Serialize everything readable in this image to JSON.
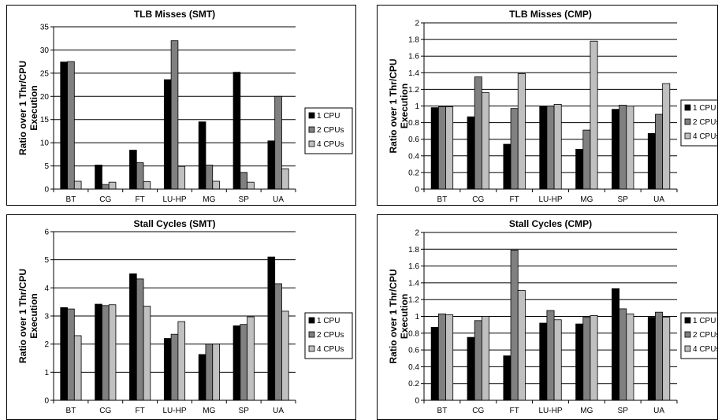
{
  "colors": {
    "series": [
      "#000000",
      "#808080",
      "#c0c0c0"
    ],
    "grid": "#000000"
  },
  "chart_data": [
    {
      "type": "bar",
      "title": "TLB Misses (SMT)",
      "ylabel": [
        "Ratio over 1 Thr/CPU",
        "Execution"
      ],
      "categories": [
        "BT",
        "CG",
        "FT",
        "LU-HP",
        "MG",
        "SP",
        "UA"
      ],
      "ylim": [
        0,
        35
      ],
      "yticks": [
        "0",
        "5",
        "10",
        "15",
        "20",
        "25",
        "30",
        "35"
      ],
      "grid": true,
      "legend": "right",
      "series": [
        {
          "name": "1 CPU",
          "values": [
            27.4,
            5.2,
            8.4,
            23.6,
            14.5,
            25.2,
            10.4
          ]
        },
        {
          "name": "2 CPUs",
          "values": [
            27.5,
            1.0,
            5.7,
            32.0,
            5.2,
            3.6,
            20.0
          ]
        },
        {
          "name": "4 CPUs",
          "values": [
            1.7,
            1.5,
            1.6,
            4.9,
            1.7,
            1.5,
            4.4
          ]
        }
      ]
    },
    {
      "type": "bar",
      "title": "TLB Misses (CMP)",
      "ylabel": [
        "Ratio over 1 Thr/CPU",
        "Execution"
      ],
      "categories": [
        "BT",
        "CG",
        "FT",
        "LU-HP",
        "MG",
        "SP",
        "UA"
      ],
      "ylim": [
        0,
        2
      ],
      "yticks": [
        "0",
        "0.2",
        "0.4",
        "0.6",
        "0.8",
        "1",
        "1.2",
        "1.4",
        "1.6",
        "1.8",
        "2"
      ],
      "grid": true,
      "legend": "right",
      "series": [
        {
          "name": "1 CPU",
          "values": [
            0.98,
            0.87,
            0.54,
            1.0,
            0.48,
            0.96,
            0.67
          ]
        },
        {
          "name": "2 CPUs",
          "values": [
            0.99,
            1.35,
            0.97,
            1.0,
            0.71,
            1.01,
            0.9
          ]
        },
        {
          "name": "4 CPUs",
          "values": [
            0.99,
            1.16,
            1.39,
            1.02,
            1.78,
            1.0,
            1.27
          ]
        }
      ]
    },
    {
      "type": "bar",
      "title": "Stall Cycles (SMT)",
      "ylabel": [
        "Ratio over 1 Thr/CPU",
        "Execution"
      ],
      "categories": [
        "BT",
        "CG",
        "FT",
        "LU-HP",
        "MG",
        "SP",
        "UA"
      ],
      "ylim": [
        0,
        6
      ],
      "yticks": [
        "0",
        "1",
        "2",
        "3",
        "4",
        "5",
        "6"
      ],
      "grid": true,
      "legend": "right",
      "series": [
        {
          "name": "1 CPU",
          "values": [
            3.3,
            3.42,
            4.5,
            2.2,
            1.63,
            2.65,
            5.1
          ]
        },
        {
          "name": "2 CPUs",
          "values": [
            3.25,
            3.37,
            4.32,
            2.35,
            2.0,
            2.7,
            4.15
          ]
        },
        {
          "name": "4 CPUs",
          "values": [
            2.3,
            3.4,
            3.35,
            2.8,
            2.0,
            2.97,
            3.17
          ]
        }
      ]
    },
    {
      "type": "bar",
      "title": "Stall Cycles (CMP)",
      "ylabel": [
        "Ratio over 1 Thr/CPU",
        "Execution"
      ],
      "categories": [
        "BT",
        "CG",
        "FT",
        "LU-HP",
        "MG",
        "SP",
        "UA"
      ],
      "ylim": [
        0,
        2
      ],
      "yticks": [
        "0",
        "0.2",
        "0.4",
        "0.6",
        "0.8",
        "1",
        "1.2",
        "1.4",
        "1.6",
        "1.8",
        "2"
      ],
      "grid": true,
      "legend": "right",
      "series": [
        {
          "name": "1 CPU",
          "values": [
            0.87,
            0.75,
            0.53,
            0.92,
            0.91,
            1.33,
            0.99
          ]
        },
        {
          "name": "2 CPUs",
          "values": [
            1.03,
            0.95,
            1.79,
            1.07,
            0.99,
            1.09,
            1.05
          ]
        },
        {
          "name": "4 CPUs",
          "values": [
            1.02,
            1.0,
            1.31,
            0.96,
            1.01,
            1.03,
            0.99
          ]
        }
      ]
    }
  ]
}
